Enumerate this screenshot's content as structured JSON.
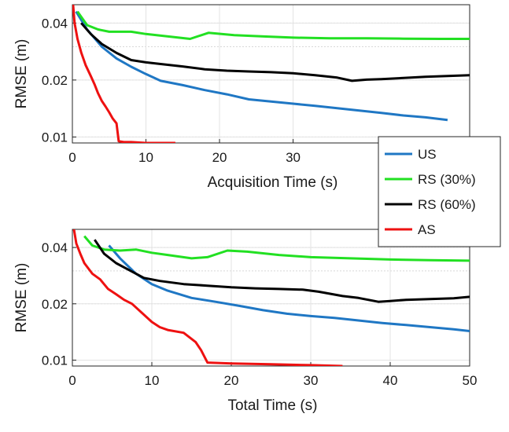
{
  "chart_data": [
    {
      "type": "line",
      "xlabel": "Acquisition Time (s)",
      "ylabel": "RMSE (m)",
      "xlim": [
        0,
        54
      ],
      "ylim": [
        0.0093,
        0.05
      ],
      "yscale": "log",
      "xticks": [
        0,
        10,
        20,
        30
      ],
      "yticks": [
        0.01,
        0.02,
        0.04
      ],
      "ytick_labels": [
        "0.01",
        "0.02",
        "0.04"
      ],
      "grid": true,
      "series": [
        {
          "name": "US",
          "color": "#1f77c4",
          "x": [
            0.5,
            2,
            4,
            6,
            8,
            10,
            12,
            15,
            18,
            21,
            24,
            27,
            30,
            33,
            36,
            39,
            42,
            45,
            48,
            51
          ],
          "y": [
            0.046,
            0.037,
            0.03,
            0.026,
            0.0235,
            0.0215,
            0.0198,
            0.0188,
            0.0177,
            0.0168,
            0.0158,
            0.0154,
            0.015,
            0.0146,
            0.0142,
            0.0138,
            0.0134,
            0.013,
            0.0127,
            0.0123
          ]
        },
        {
          "name": "RS (30%)",
          "color": "#22e022",
          "x": [
            0.7,
            2,
            3.5,
            5,
            8,
            10,
            13,
            16,
            18.5,
            22,
            26,
            30,
            35,
            40,
            45,
            50,
            54
          ],
          "y": [
            0.046,
            0.039,
            0.037,
            0.036,
            0.036,
            0.035,
            0.034,
            0.033,
            0.0355,
            0.0345,
            0.034,
            0.0335,
            0.0332,
            0.0332,
            0.0331,
            0.033,
            0.033
          ]
        },
        {
          "name": "RS (60%)",
          "color": "#000000",
          "x": [
            1.2,
            2.5,
            4,
            6,
            8,
            10,
            12,
            15,
            18,
            21,
            24,
            27,
            30,
            33,
            36,
            38,
            40,
            42,
            45,
            48,
            51,
            54
          ],
          "y": [
            0.04,
            0.035,
            0.031,
            0.0278,
            0.0255,
            0.0248,
            0.0243,
            0.0236,
            0.0228,
            0.0224,
            0.0222,
            0.022,
            0.0217,
            0.0212,
            0.0206,
            0.0198,
            0.0201,
            0.0202,
            0.0205,
            0.0208,
            0.021,
            0.0212
          ]
        },
        {
          "name": "AS",
          "color": "#ee1111",
          "x": [
            0.1,
            0.3,
            0.7,
            1.2,
            1.8,
            2.5,
            3,
            3.5,
            4,
            4.5,
            5,
            5.5,
            6,
            6.3,
            7,
            8,
            10,
            12,
            14
          ],
          "y": [
            0.05,
            0.04,
            0.033,
            0.028,
            0.024,
            0.021,
            0.019,
            0.017,
            0.0155,
            0.0145,
            0.0135,
            0.0125,
            0.0118,
            0.0095,
            0.0094,
            0.0094,
            0.0093,
            0.0093,
            0.0093
          ]
        }
      ]
    },
    {
      "type": "line",
      "xlabel": "Total  Time (s)",
      "ylabel": "RMSE (m)",
      "xlim": [
        0,
        50
      ],
      "ylim": [
        0.0093,
        0.05
      ],
      "yscale": "log",
      "xticks": [
        0,
        10,
        20,
        30,
        40,
        50
      ],
      "yticks": [
        0.01,
        0.02,
        0.04
      ],
      "ytick_labels": [
        "0.01",
        "0.02",
        "0.04"
      ],
      "grid": true,
      "series": [
        {
          "name": "US",
          "color": "#1f77c4",
          "x": [
            4.6,
            6,
            8,
            10,
            12,
            15,
            18,
            21,
            24,
            27,
            30,
            33,
            36,
            39,
            42,
            45,
            48,
            50
          ],
          "y": [
            0.041,
            0.035,
            0.029,
            0.0255,
            0.0235,
            0.0215,
            0.0205,
            0.0195,
            0.0185,
            0.0177,
            0.0172,
            0.0168,
            0.0163,
            0.0158,
            0.0154,
            0.015,
            0.0146,
            0.0143
          ]
        },
        {
          "name": "RS (30%)",
          "color": "#22e022",
          "x": [
            1.5,
            2.5,
            4,
            6,
            8,
            10,
            12,
            15,
            17,
            19.5,
            22,
            26,
            30,
            35,
            40,
            45,
            50
          ],
          "y": [
            0.046,
            0.041,
            0.039,
            0.0385,
            0.039,
            0.0375,
            0.0365,
            0.035,
            0.0355,
            0.0385,
            0.038,
            0.0365,
            0.0355,
            0.035,
            0.0345,
            0.0342,
            0.034
          ]
        },
        {
          "name": "RS (60%)",
          "color": "#000000",
          "x": [
            2.8,
            4,
            5.5,
            7,
            9,
            11,
            14,
            17,
            20,
            23,
            26,
            29,
            31,
            34,
            36,
            38.5,
            40,
            42,
            45,
            48,
            50
          ],
          "y": [
            0.044,
            0.037,
            0.033,
            0.0305,
            0.0275,
            0.0265,
            0.0255,
            0.025,
            0.0245,
            0.0242,
            0.024,
            0.0238,
            0.0232,
            0.022,
            0.0215,
            0.0205,
            0.0207,
            0.021,
            0.0212,
            0.0214,
            0.0218
          ]
        },
        {
          "name": "AS",
          "color": "#ee1111",
          "x": [
            0.2,
            0.5,
            1,
            1.5,
            2.5,
            3.5,
            4.5,
            5.5,
            6.5,
            7.5,
            9,
            10,
            11,
            12,
            14,
            15.5,
            16.2,
            17,
            20,
            25,
            30,
            34
          ],
          "y": [
            0.05,
            0.042,
            0.037,
            0.033,
            0.029,
            0.027,
            0.024,
            0.0225,
            0.021,
            0.02,
            0.0175,
            0.016,
            0.015,
            0.0145,
            0.014,
            0.0125,
            0.0113,
            0.0097,
            0.0096,
            0.0095,
            0.0094,
            0.0093
          ]
        }
      ]
    }
  ],
  "legend": {
    "placement": "right",
    "entries": [
      {
        "label": "US",
        "color": "#1f77c4"
      },
      {
        "label": "RS (30%)",
        "color": "#22e022"
      },
      {
        "label": "RS (60%)",
        "color": "#000000"
      },
      {
        "label": "AS",
        "color": "#ee1111"
      }
    ]
  }
}
